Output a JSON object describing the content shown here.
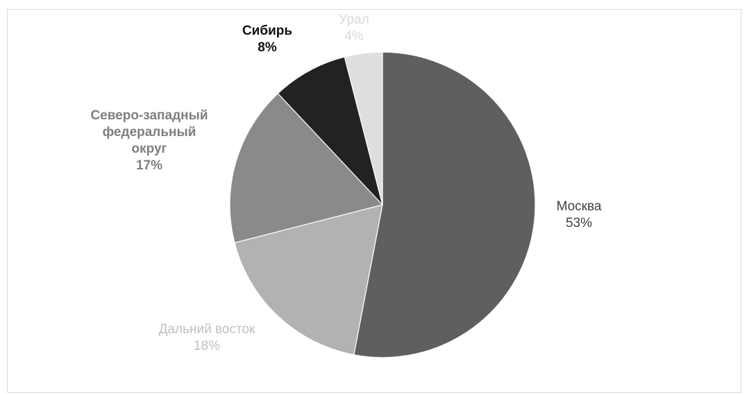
{
  "chart_data": {
    "type": "pie",
    "title": "",
    "categories": [
      "Москва",
      "Дальний восток",
      "Северо-западный федеральный округ",
      "Сибирь",
      "Урал"
    ],
    "values": [
      53,
      18,
      17,
      8,
      4
    ],
    "labels": [
      {
        "name_lines": [
          "Москва"
        ],
        "percent": "53%",
        "color": "#404040",
        "bold": false
      },
      {
        "name_lines": [
          "Дальний восток"
        ],
        "percent": "18%",
        "color": "#bfbfbf",
        "bold": false
      },
      {
        "name_lines": [
          "Северо-западный",
          "федеральный",
          "округ"
        ],
        "percent": "17%",
        "color": "#7f7f7f",
        "bold": true
      },
      {
        "name_lines": [
          "Сибирь"
        ],
        "percent": "8%",
        "color": "#111111",
        "bold": true
      },
      {
        "name_lines": [
          "Урал"
        ],
        "percent": "4%",
        "color": "#d9d9d9",
        "bold": false
      }
    ],
    "colors": [
      "#5f5f5f",
      "#b2b2b2",
      "#8a8a8a",
      "#222222",
      "#dedede"
    ],
    "legend": "none",
    "start_angle": "12 o'clock",
    "direction": "clockwise"
  }
}
